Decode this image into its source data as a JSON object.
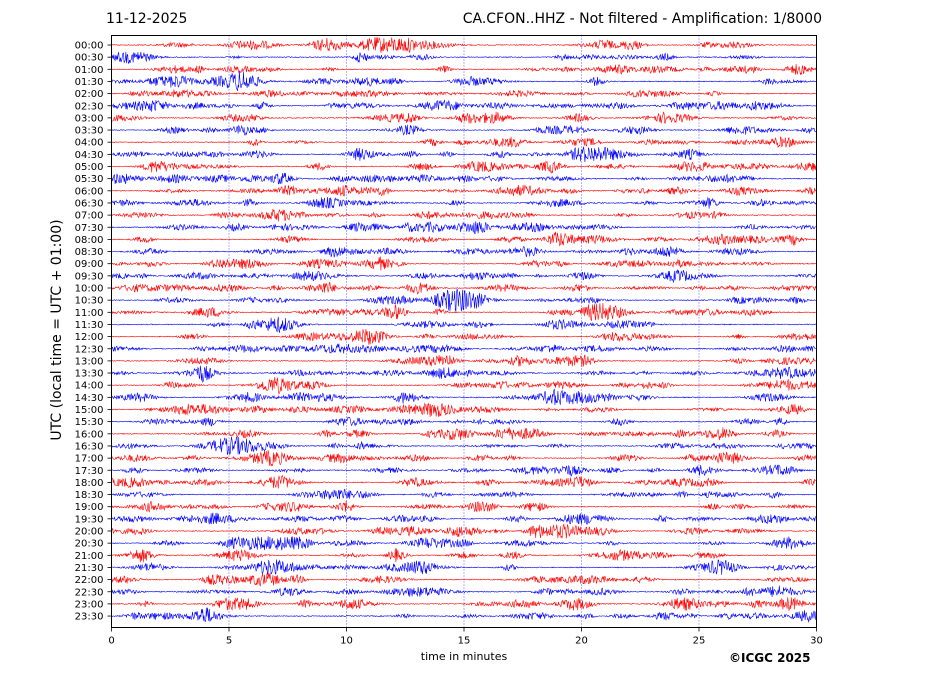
{
  "header": {
    "date": "11-12-2025",
    "title": "CA.CFON..HHZ - Not filtered - Amplification: 1/8000"
  },
  "footer": {
    "copyright": "©ICGC 2025"
  },
  "colors": {
    "red": "#ff0000",
    "blue": "#0000ff",
    "grid": "#0000ff"
  },
  "chart_data": {
    "type": "line",
    "title": "CA.CFON..HHZ - Not filtered - Amplification: 1/8000",
    "xlabel": "time in minutes",
    "ylabel": "UTC (local time = UTC + 01:00)",
    "xlim": [
      0,
      30
    ],
    "x_ticks": [
      0,
      5,
      10,
      15,
      20,
      25,
      30
    ],
    "grid": "vertical dotted lines at each 5 minutes",
    "trace_colors": [
      "#ff0000",
      "#0000ff"
    ],
    "rows": [
      "00:00",
      "00:30",
      "01:00",
      "01:30",
      "02:00",
      "02:30",
      "03:00",
      "03:30",
      "04:00",
      "04:30",
      "05:00",
      "05:30",
      "06:00",
      "06:30",
      "07:00",
      "07:30",
      "08:00",
      "08:30",
      "09:00",
      "09:30",
      "10:00",
      "10:30",
      "11:00",
      "11:30",
      "12:00",
      "12:30",
      "13:00",
      "13:30",
      "14:00",
      "14:30",
      "15:00",
      "15:30",
      "16:00",
      "16:30",
      "17:00",
      "17:30",
      "18:00",
      "18:30",
      "19:00",
      "19:30",
      "20:00",
      "20:30",
      "21:00",
      "21:30",
      "22:00",
      "22:30",
      "23:00",
      "23:30"
    ]
  }
}
